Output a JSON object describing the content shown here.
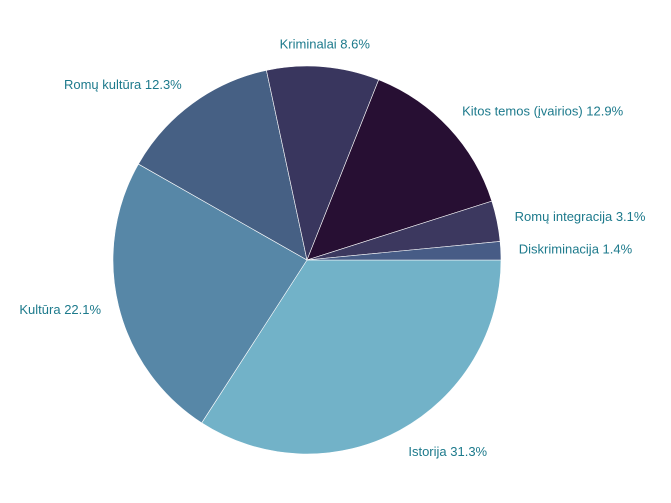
{
  "chart_data": {
    "type": "pie",
    "start_angle_deg": 0,
    "direction": "clockwise",
    "label_color": "#1d7a8c",
    "slices": [
      {
        "label": "Istorija",
        "value": 31.3,
        "text": "Istorija 31.3%",
        "color": "#72b2c8"
      },
      {
        "label": "Kultūra",
        "value": 22.1,
        "text": "Kultūra 22.1%",
        "color": "#5787a7"
      },
      {
        "label": "Romų kultūra",
        "value": 12.3,
        "text": "Romų kultūra 12.3%",
        "color": "#466084"
      },
      {
        "label": "Kriminalai",
        "value": 8.6,
        "text": "Kriminalai 8.6%",
        "color": "#39365e"
      },
      {
        "label": "Kitos temos (įvairios)",
        "value": 12.9,
        "text": "Kitos temos (įvairios) 12.9%",
        "color": "#270f33"
      },
      {
        "label": "Romų integracija",
        "value": 3.1,
        "text": "Romų integracija 3.1%",
        "color": "#3c385f"
      },
      {
        "label": "Diskriminacija",
        "value": 1.4,
        "text": "Diskriminacija 1.4%",
        "color": "#475c86"
      }
    ]
  }
}
